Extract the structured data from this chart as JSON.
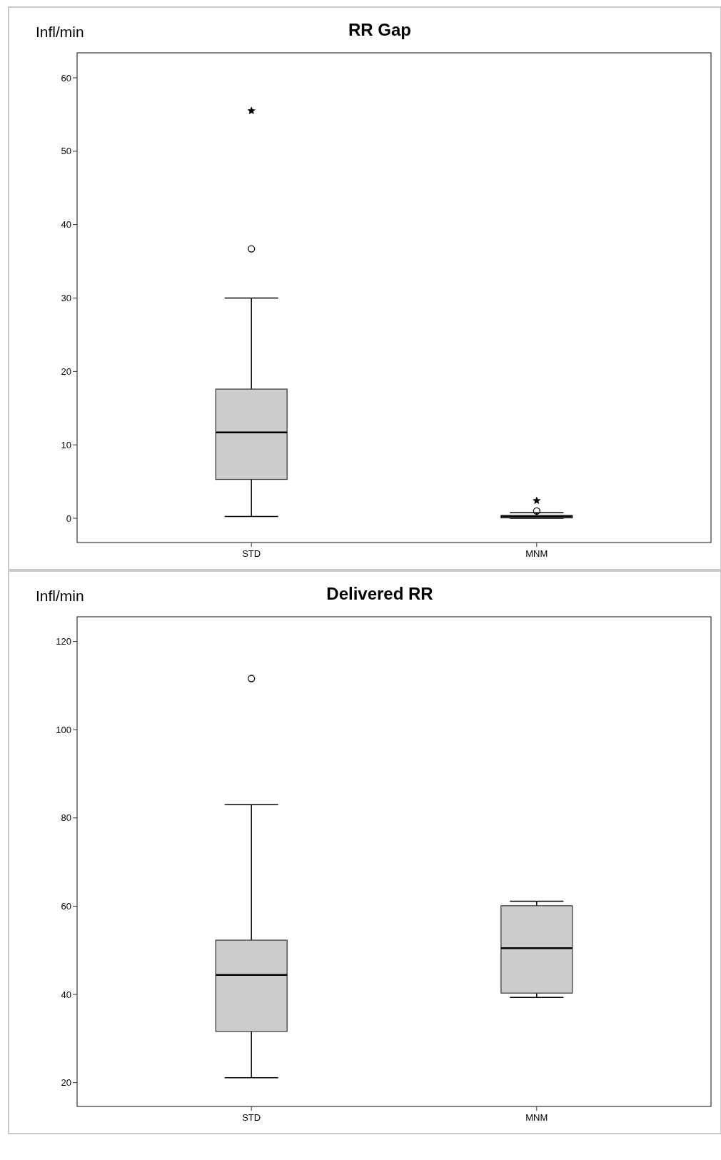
{
  "chart_data": [
    {
      "type": "box",
      "title": "RR Gap",
      "ylabel": "Infl/min",
      "categories": [
        "STD",
        "MNM"
      ],
      "ylim": [
        -3.3,
        63.4
      ],
      "yticks": [
        0,
        10,
        20,
        30,
        40,
        50,
        60
      ],
      "grid": false,
      "series": [
        {
          "color": "#cccccc",
          "boxes": [
            {
              "low": 0.25,
              "q1": 5.3,
              "median": 11.7,
              "q3": 17.6,
              "high": 30.0,
              "outliers": [
                36.7,
                55.5
              ]
            },
            {
              "low": 0,
              "q1": 0.05,
              "median": 0.25,
              "q3": 0.4,
              "high": 0.75,
              "outliers": [
                1.0,
                2.4
              ]
            }
          ]
        }
      ]
    },
    {
      "type": "box",
      "title": "Delivered RR",
      "ylabel": "Infl/min",
      "categories": [
        "STD",
        "MNM"
      ],
      "ylim": [
        14.6,
        125.6
      ],
      "yticks": [
        20,
        40,
        60,
        80,
        100,
        120
      ],
      "grid": false,
      "series": [
        {
          "color": "#cccccc",
          "boxes": [
            {
              "low": 21.1,
              "q1": 31.6,
              "median": 44.4,
              "q3": 52.3,
              "high": 83,
              "outliers": [
                111.6
              ]
            },
            {
              "low": 39.3,
              "q1": 40.3,
              "median": 50.5,
              "q3": 60.1,
              "high": 61.1
            }
          ]
        }
      ]
    }
  ]
}
